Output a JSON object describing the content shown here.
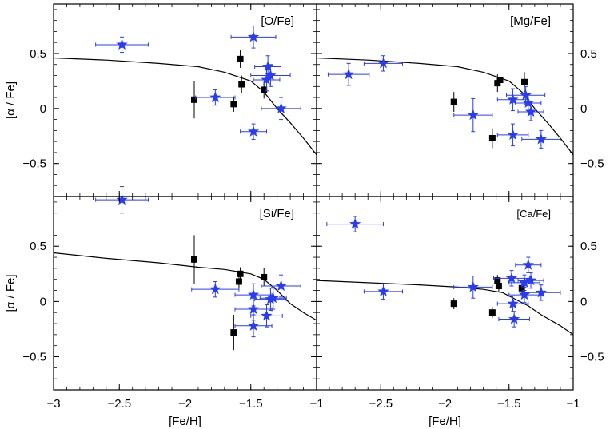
{
  "chart_data": {
    "type": "scatter",
    "layout": "2x2 panels, shared axes",
    "xlabel": "[Fe/H]",
    "ylabel": "[α / Fe]",
    "xlim": [
      -3,
      -1
    ],
    "ylim": [
      -0.8,
      0.95
    ],
    "xticks": [
      -3,
      -2.5,
      -2,
      -1.5,
      -1
    ],
    "xtick_labels": [
      "−3",
      "−2.5",
      "−2",
      "−1.5",
      "−1"
    ],
    "yticks": [
      -0.5,
      0,
      0.5
    ],
    "ytick_labels": [
      "−0.5",
      "0",
      "0.5"
    ],
    "colors": {
      "stars": "#2a3cf0",
      "squares": "#000000",
      "line": "#000000",
      "frame": "#000000"
    },
    "panels": [
      {
        "label": "[O/Fe]",
        "label_position": "top-right",
        "black_squares": [
          {
            "x": -1.93,
            "y": 0.08,
            "yerr": 0.17
          },
          {
            "x": -1.63,
            "y": 0.04,
            "yerr": 0.07
          },
          {
            "x": -1.58,
            "y": 0.45,
            "yerr": 0.08
          },
          {
            "x": -1.57,
            "y": 0.22,
            "yerr": 0.08
          },
          {
            "x": -1.4,
            "y": 0.17,
            "yerr": 0.08
          }
        ],
        "blue_stars": [
          {
            "x": -2.48,
            "y": 0.58,
            "xerr": 0.2,
            "yerr": 0.07
          },
          {
            "x": -1.77,
            "y": 0.1,
            "xerr": 0.15,
            "yerr": 0.07
          },
          {
            "x": -1.48,
            "y": 0.65,
            "xerr": 0.17,
            "yerr": 0.1
          },
          {
            "x": -1.48,
            "y": -0.21,
            "xerr": 0.1,
            "yerr": 0.07
          },
          {
            "x": -1.38,
            "y": 0.26,
            "xerr": 0.1,
            "yerr": 0.1
          },
          {
            "x": -1.37,
            "y": 0.38,
            "xerr": 0.1,
            "yerr": 0.1
          },
          {
            "x": -1.35,
            "y": 0.3,
            "xerr": 0.15,
            "yerr": 0.1
          },
          {
            "x": -1.27,
            "y": 0.0,
            "xerr": 0.15,
            "yerr": 0.1
          }
        ],
        "model_line": [
          [
            -3,
            0.46
          ],
          [
            -2.6,
            0.44
          ],
          [
            -2.2,
            0.41
          ],
          [
            -1.9,
            0.38
          ],
          [
            -1.7,
            0.33
          ],
          [
            -1.5,
            0.25
          ],
          [
            -1.4,
            0.15
          ],
          [
            -1.3,
            0.0
          ],
          [
            -1.2,
            -0.13
          ],
          [
            -1.1,
            -0.27
          ],
          [
            -1.0,
            -0.42
          ]
        ]
      },
      {
        "label": "[Mg/Fe]",
        "label_position": "top-right",
        "black_squares": [
          {
            "x": -1.93,
            "y": 0.06,
            "yerr": 0.09
          },
          {
            "x": -1.63,
            "y": -0.27,
            "yerr": 0.09
          },
          {
            "x": -1.59,
            "y": 0.23,
            "yerr": 0.08
          },
          {
            "x": -1.57,
            "y": 0.26,
            "yerr": 0.08
          },
          {
            "x": -1.38,
            "y": 0.24,
            "yerr": 0.09
          }
        ],
        "blue_stars": [
          {
            "x": -2.75,
            "y": 0.31,
            "xerr": 0.16,
            "yerr": 0.1
          },
          {
            "x": -2.48,
            "y": 0.41,
            "xerr": 0.15,
            "yerr": 0.07
          },
          {
            "x": -1.78,
            "y": -0.06,
            "xerr": 0.15,
            "yerr": 0.15
          },
          {
            "x": -1.47,
            "y": 0.08,
            "xerr": 0.12,
            "yerr": 0.1
          },
          {
            "x": -1.47,
            "y": -0.24,
            "xerr": 0.12,
            "yerr": 0.1
          },
          {
            "x": -1.37,
            "y": 0.12,
            "xerr": 0.15,
            "yerr": 0.08
          },
          {
            "x": -1.35,
            "y": 0.05,
            "xerr": 0.1,
            "yerr": 0.08
          },
          {
            "x": -1.33,
            "y": -0.03,
            "xerr": 0.1,
            "yerr": 0.08
          },
          {
            "x": -1.25,
            "y": -0.28,
            "xerr": 0.15,
            "yerr": 0.08
          }
        ],
        "model_line": [
          [
            -3,
            0.46
          ],
          [
            -2.6,
            0.44
          ],
          [
            -2.2,
            0.41
          ],
          [
            -1.9,
            0.38
          ],
          [
            -1.7,
            0.33
          ],
          [
            -1.5,
            0.25
          ],
          [
            -1.4,
            0.15
          ],
          [
            -1.3,
            0.0
          ],
          [
            -1.2,
            -0.13
          ],
          [
            -1.1,
            -0.27
          ],
          [
            -1.0,
            -0.42
          ]
        ]
      },
      {
        "label": "[Si/Fe]",
        "label_position": "top-right",
        "black_squares": [
          {
            "x": -1.93,
            "y": 0.38,
            "yerr": 0.22
          },
          {
            "x": -1.63,
            "y": -0.28,
            "yerr": 0.16
          },
          {
            "x": -1.59,
            "y": 0.18,
            "yerr": 0.06
          },
          {
            "x": -1.58,
            "y": 0.25,
            "yerr": 0.06
          },
          {
            "x": -1.4,
            "y": 0.22,
            "yerr": 0.08
          }
        ],
        "blue_stars": [
          {
            "x": -2.48,
            "y": 0.92,
            "xerr": 0.2,
            "yerr": 0.12
          },
          {
            "x": -1.77,
            "y": 0.11,
            "xerr": 0.18,
            "yerr": 0.07
          },
          {
            "x": -1.48,
            "y": 0.06,
            "xerr": 0.14,
            "yerr": 0.1
          },
          {
            "x": -1.48,
            "y": -0.07,
            "xerr": 0.14,
            "yerr": 0.1
          },
          {
            "x": -1.48,
            "y": -0.22,
            "xerr": 0.14,
            "yerr": 0.1
          },
          {
            "x": -1.38,
            "y": -0.13,
            "xerr": 0.12,
            "yerr": 0.1
          },
          {
            "x": -1.35,
            "y": 0.02,
            "xerr": 0.12,
            "yerr": 0.1
          },
          {
            "x": -1.33,
            "y": 0.03,
            "xerr": 0.1,
            "yerr": 0.1
          },
          {
            "x": -1.27,
            "y": 0.14,
            "xerr": 0.15,
            "yerr": 0.1
          }
        ],
        "model_line": [
          [
            -3,
            0.44
          ],
          [
            -2.6,
            0.39
          ],
          [
            -2.2,
            0.35
          ],
          [
            -1.9,
            0.31
          ],
          [
            -1.7,
            0.29
          ],
          [
            -1.5,
            0.25
          ],
          [
            -1.4,
            0.2
          ],
          [
            -1.3,
            0.1
          ],
          [
            -1.2,
            -0.02
          ],
          [
            -1.1,
            -0.1
          ],
          [
            -1.0,
            -0.17
          ]
        ]
      },
      {
        "label": "[Ca/Fe]",
        "label_position": "top-right",
        "black_squares": [
          {
            "x": -1.93,
            "y": -0.02,
            "yerr": 0.05
          },
          {
            "x": -1.63,
            "y": -0.1,
            "yerr": 0.05
          },
          {
            "x": -1.59,
            "y": 0.19,
            "yerr": 0.05
          },
          {
            "x": -1.58,
            "y": 0.14,
            "yerr": 0.05
          },
          {
            "x": -1.4,
            "y": 0.12,
            "yerr": 0.05
          }
        ],
        "blue_stars": [
          {
            "x": -2.7,
            "y": 0.7,
            "xerr": 0.22,
            "yerr": 0.07
          },
          {
            "x": -2.48,
            "y": 0.09,
            "xerr": 0.15,
            "yerr": 0.07
          },
          {
            "x": -1.78,
            "y": 0.13,
            "xerr": 0.15,
            "yerr": 0.1
          },
          {
            "x": -1.48,
            "y": 0.21,
            "xerr": 0.14,
            "yerr": 0.07
          },
          {
            "x": -1.47,
            "y": -0.02,
            "xerr": 0.12,
            "yerr": 0.07
          },
          {
            "x": -1.46,
            "y": -0.16,
            "xerr": 0.12,
            "yerr": 0.07
          },
          {
            "x": -1.38,
            "y": 0.17,
            "xerr": 0.12,
            "yerr": 0.07
          },
          {
            "x": -1.38,
            "y": 0.06,
            "xerr": 0.12,
            "yerr": 0.07
          },
          {
            "x": -1.35,
            "y": 0.33,
            "xerr": 0.1,
            "yerr": 0.07
          },
          {
            "x": -1.33,
            "y": 0.19,
            "xerr": 0.1,
            "yerr": 0.07
          },
          {
            "x": -1.25,
            "y": 0.08,
            "xerr": 0.15,
            "yerr": 0.07
          }
        ],
        "model_line": [
          [
            -3,
            0.19
          ],
          [
            -2.6,
            0.17
          ],
          [
            -2.2,
            0.15
          ],
          [
            -1.9,
            0.13
          ],
          [
            -1.7,
            0.11
          ],
          [
            -1.55,
            0.08
          ],
          [
            -1.45,
            0.02
          ],
          [
            -1.35,
            -0.04
          ],
          [
            -1.25,
            -0.12
          ],
          [
            -1.1,
            -0.22
          ],
          [
            -1.0,
            -0.3
          ]
        ]
      }
    ]
  }
}
